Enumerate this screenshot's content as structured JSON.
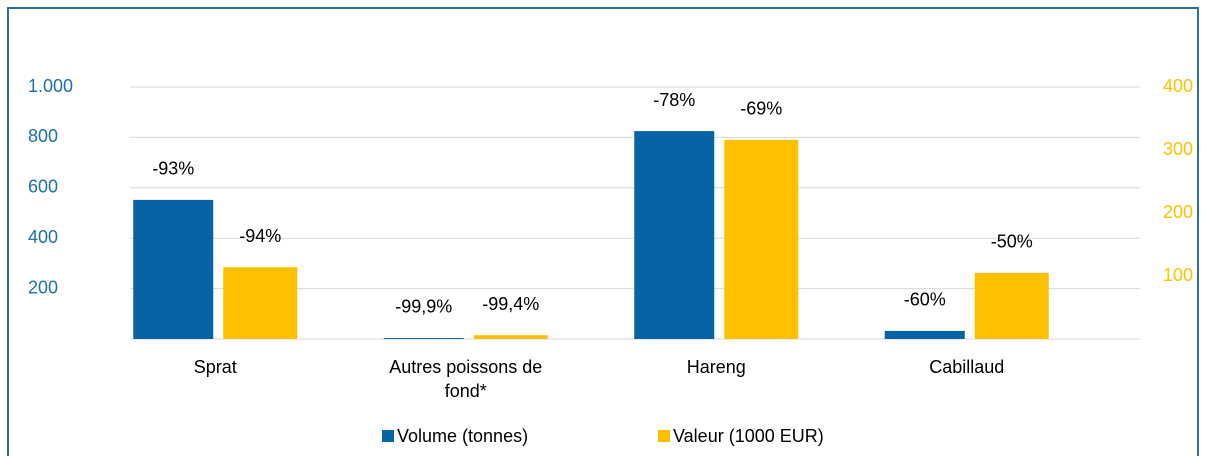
{
  "chart_data": {
    "type": "bar",
    "categories": [
      "Sprat",
      "Autres poissons de fond*",
      "Hareng",
      "Cabillaud"
    ],
    "series": [
      {
        "name": "Volume (tonnes)",
        "color": "#0563a6",
        "axis": "y",
        "values": [
          552,
          4,
          825,
          32
        ],
        "annotations": [
          "-93%",
          "-99,9%",
          "-78%",
          "-60%"
        ]
      },
      {
        "name": "Valeur (1000 EUR)",
        "color": "#ffc000",
        "axis": "y2",
        "values": [
          114,
          6,
          316,
          105
        ],
        "annotations": [
          "-94%",
          "-99,4%",
          "-69%",
          "-50%"
        ]
      }
    ],
    "ylim": [
      0,
      1000
    ],
    "yticks": [
      200,
      400,
      600,
      800,
      {
        "value": 1000,
        "label": "1.000"
      }
    ],
    "y2lim": [
      0,
      400
    ],
    "y2ticks": [
      100,
      200,
      300,
      400
    ],
    "grid": true,
    "legend": "bottom"
  }
}
